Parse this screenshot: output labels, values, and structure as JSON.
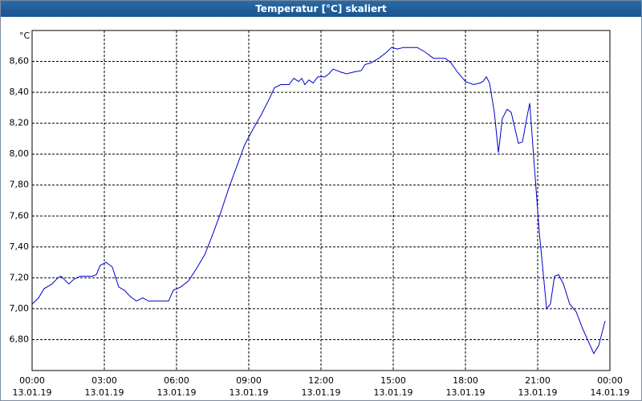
{
  "chart_data": {
    "type": "line",
    "title": "Temperatur [°C] skaliert",
    "y_unit": "°C",
    "xlim": [
      0,
      24
    ],
    "ylim": [
      6.6,
      8.8
    ],
    "grid": true,
    "xticks": [
      {
        "value": 0,
        "label": "00:00",
        "sublabel": "13.01.19"
      },
      {
        "value": 3,
        "label": "03:00",
        "sublabel": "13.01.19"
      },
      {
        "value": 6,
        "label": "06:00",
        "sublabel": "13.01.19"
      },
      {
        "value": 9,
        "label": "09:00",
        "sublabel": "13.01.19"
      },
      {
        "value": 12,
        "label": "12:00",
        "sublabel": "13.01.19"
      },
      {
        "value": 15,
        "label": "15:00",
        "sublabel": "13.01.19"
      },
      {
        "value": 18,
        "label": "18:00",
        "sublabel": "13.01.19"
      },
      {
        "value": 21,
        "label": "21:00",
        "sublabel": "13.01.19"
      },
      {
        "value": 24,
        "label": "00:00",
        "sublabel": "14.01.19"
      }
    ],
    "yticks": [
      {
        "value": 6.8,
        "label": "6,80"
      },
      {
        "value": 7.0,
        "label": "7,00"
      },
      {
        "value": 7.2,
        "label": "7,20"
      },
      {
        "value": 7.4,
        "label": "7,40"
      },
      {
        "value": 7.6,
        "label": "7,60"
      },
      {
        "value": 7.8,
        "label": "7,80"
      },
      {
        "value": 8.0,
        "label": "8,00"
      },
      {
        "value": 8.2,
        "label": "8,20"
      },
      {
        "value": 8.4,
        "label": "8,40"
      },
      {
        "value": 8.6,
        "label": "8,60"
      }
    ],
    "x": [
      0,
      0.27,
      0.5,
      0.83,
      1.07,
      1.2,
      1.33,
      1.53,
      1.73,
      2.0,
      2.5,
      2.67,
      2.83,
      3.07,
      3.33,
      3.6,
      3.83,
      4.07,
      4.33,
      4.6,
      4.83,
      5.33,
      5.67,
      5.87,
      6.17,
      6.5,
      6.83,
      7.17,
      7.5,
      7.83,
      8.17,
      8.5,
      8.83,
      9.17,
      9.5,
      9.83,
      10.07,
      10.33,
      10.67,
      10.87,
      11.07,
      11.2,
      11.33,
      11.5,
      11.67,
      11.87,
      12.17,
      12.33,
      12.5,
      12.83,
      13.07,
      13.33,
      13.67,
      13.83,
      14.07,
      14.4,
      14.73,
      14.93,
      15.17,
      15.43,
      16.0,
      16.33,
      16.67,
      17.17,
      17.4,
      17.67,
      18.0,
      18.33,
      18.6,
      18.73,
      18.87,
      19.0,
      19.2,
      19.37,
      19.53,
      19.73,
      19.9,
      20.2,
      20.37,
      20.53,
      20.67,
      20.83,
      21.07,
      21.2,
      21.37,
      21.53,
      21.7,
      21.87,
      22.07,
      22.33,
      22.6,
      22.87,
      23.13,
      23.33,
      23.53,
      23.8
    ],
    "series": [
      {
        "name": "Temperatur",
        "color": "#0000cc",
        "values": [
          7.03,
          7.07,
          7.13,
          7.16,
          7.2,
          7.21,
          7.19,
          7.16,
          7.19,
          7.21,
          7.21,
          7.22,
          7.28,
          7.3,
          7.27,
          7.14,
          7.12,
          7.08,
          7.05,
          7.07,
          7.05,
          7.05,
          7.05,
          7.12,
          7.14,
          7.18,
          7.26,
          7.35,
          7.48,
          7.62,
          7.78,
          7.92,
          8.06,
          8.16,
          8.25,
          8.35,
          8.43,
          8.45,
          8.45,
          8.49,
          8.47,
          8.49,
          8.45,
          8.48,
          8.46,
          8.5,
          8.5,
          8.52,
          8.55,
          8.53,
          8.52,
          8.53,
          8.54,
          8.58,
          8.59,
          8.62,
          8.66,
          8.69,
          8.68,
          8.69,
          8.69,
          8.66,
          8.62,
          8.62,
          8.59,
          8.53,
          8.47,
          8.45,
          8.46,
          8.47,
          8.5,
          8.46,
          8.27,
          8.01,
          8.23,
          8.29,
          8.27,
          8.07,
          8.08,
          8.22,
          8.33,
          7.99,
          7.49,
          7.28,
          7.0,
          7.03,
          7.21,
          7.22,
          7.16,
          7.03,
          6.98,
          6.87,
          6.78,
          6.71,
          6.76,
          6.92
        ]
      }
    ]
  }
}
